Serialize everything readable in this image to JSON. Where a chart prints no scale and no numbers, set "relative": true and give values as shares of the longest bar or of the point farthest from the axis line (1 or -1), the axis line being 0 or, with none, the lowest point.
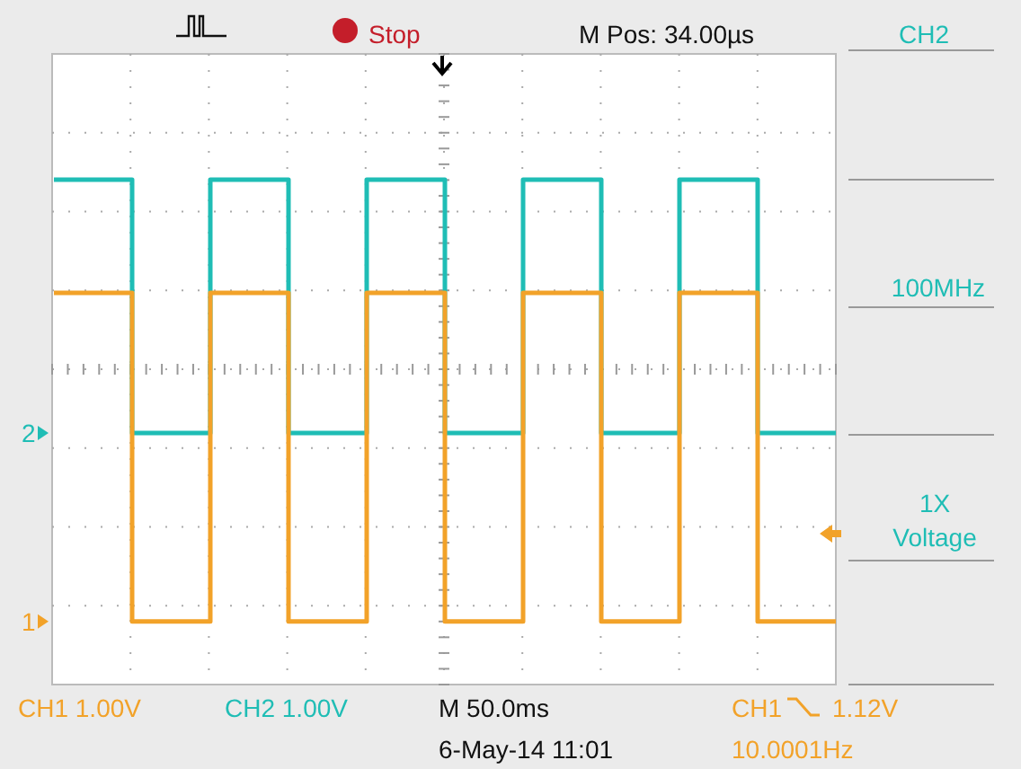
{
  "chart_data": {
    "type": "step",
    "relative": true,
    "grid": true,
    "legend": "left",
    "categories": [
      null,
      null,
      null,
      null,
      null,
      null,
      null,
      null,
      null,
      null,
      null
    ],
    "series": [
      {
        "name": "2",
        "color": "#1fbdb5",
        "values": [
          1,
          0.498,
          1,
          0.498,
          1,
          0.498,
          1,
          0.498,
          1,
          0.498,
          0.498
        ]
      },
      {
        "name": "1",
        "color": "#f2a229",
        "values": [
          0.776,
          0.125,
          0.776,
          0.125,
          0.776,
          0.125,
          0.776,
          0.125,
          0.776,
          0.125,
          0.125
        ]
      }
    ],
    "annotations": [
      "Stop",
      "M Pos: 34.00µs",
      "CH2",
      "100MHz",
      "1X",
      "Voltage",
      "CH1 1.00V",
      "CH2 1.00V",
      "M 50.0ms",
      "CH1",
      "1.12V",
      "6-May-14 11:01",
      "10.0001Hz"
    ]
  }
}
